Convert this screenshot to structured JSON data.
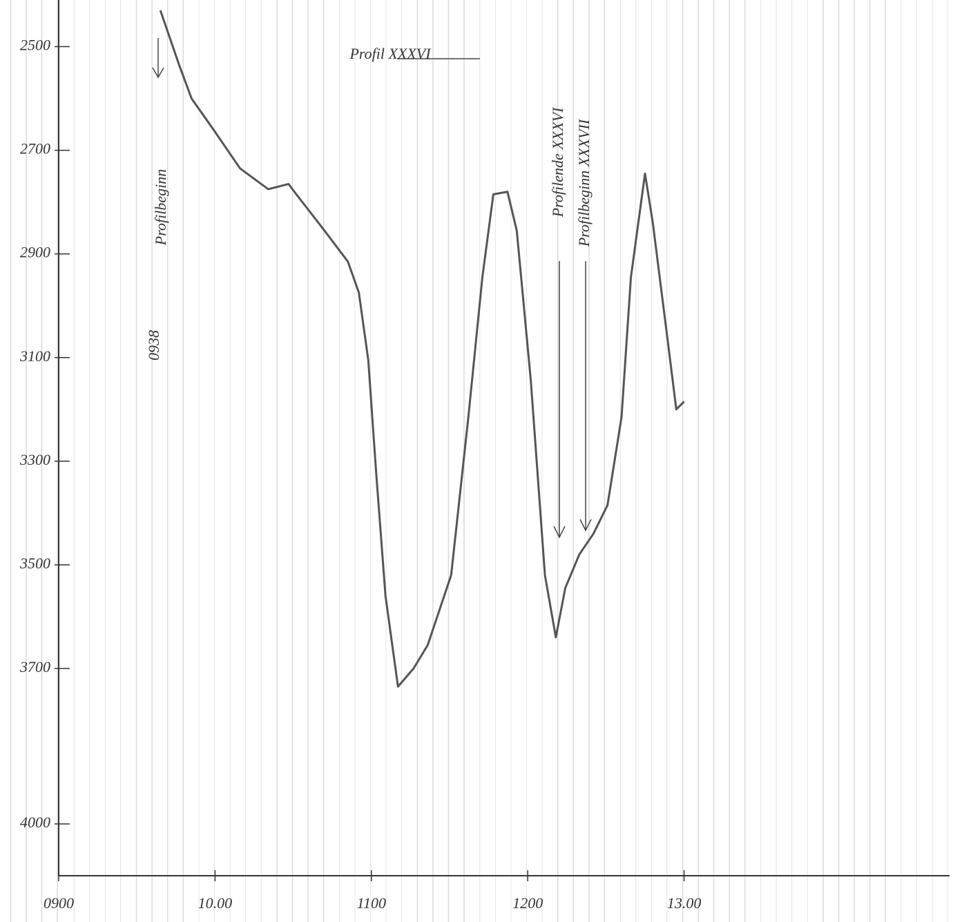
{
  "chart_data": {
    "type": "line",
    "annotations": [
      "Profil XXXVI",
      "0938",
      "Profilbeginn",
      "Profilende XXXVI",
      "Profilbeginn XXXVII"
    ],
    "x": [
      9.65,
      9.77,
      9.85,
      9.99,
      10.16,
      10.34,
      10.47,
      10.52,
      10.7,
      10.85,
      10.92,
      10.98,
      11.03,
      11.09,
      11.17,
      11.27,
      11.36,
      11.51,
      11.62,
      11.71,
      11.78,
      11.87,
      11.93,
      12.02,
      12.11,
      12.18,
      12.24,
      12.33,
      12.42,
      12.51,
      12.6,
      12.66,
      12.75,
      12.8,
      12.89,
      12.95,
      13.0
    ],
    "series": [
      {
        "color": "#555555",
        "values": [
          2430,
          2535,
          2600,
          2660,
          2735,
          2775,
          2765,
          2785,
          2855,
          2915,
          2975,
          3105,
          3320,
          3560,
          3735,
          3700,
          3655,
          3520,
          3215,
          2945,
          2785,
          2780,
          2855,
          3145,
          3520,
          3640,
          3545,
          3480,
          3440,
          3385,
          3215,
          2945,
          2745,
          2840,
          3055,
          3200,
          3185
        ]
      }
    ],
    "xlim": [
      9,
      14.72
    ],
    "xticks": [
      {
        "value": 9,
        "label": "0900"
      },
      {
        "value": 10,
        "label": "10.00"
      },
      {
        "value": 11,
        "label": "1100"
      },
      {
        "value": 12,
        "label": "1200"
      },
      {
        "value": 13,
        "label": "13.00"
      }
    ],
    "ylim": [
      4100,
      2410
    ],
    "yticks": [
      2500,
      2700,
      2900,
      3100,
      3300,
      3500,
      3700,
      4000
    ]
  }
}
